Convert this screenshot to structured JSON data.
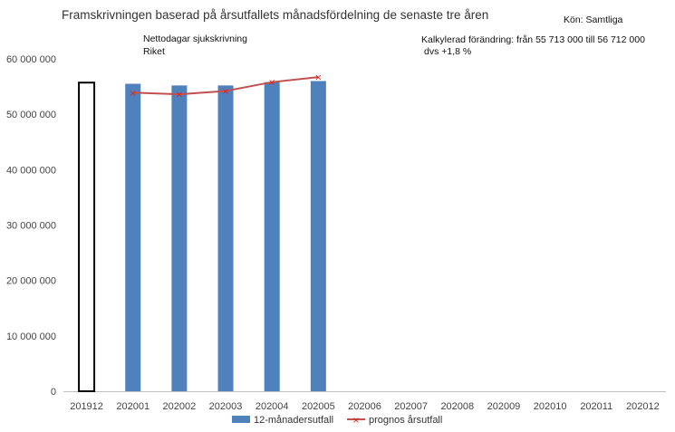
{
  "header": {
    "title": "Framskrivningen baserad på årsutfallets månadsfördelning de senaste tre åren",
    "gender": "Kön: Samtliga",
    "subtitle_line1": "Nettodagar sjukskrivning",
    "subtitle_line2": "Riket",
    "calc_line1": "Kalkylerad förändring: från 55 713 000 till 56 712 000",
    "calc_line2": "dvs +1,8 %"
  },
  "chart_data": {
    "type": "bar",
    "title": "Framskrivningen baserad på årsutfallets månadsfördelning de senaste tre åren",
    "categories": [
      "201912",
      "202001",
      "202002",
      "202003",
      "202004",
      "202005",
      "202006",
      "202007",
      "202008",
      "202009",
      "202010",
      "202011",
      "202012"
    ],
    "ylim": [
      0,
      60000000
    ],
    "yticks": [
      0,
      10000000,
      20000000,
      30000000,
      40000000,
      50000000,
      60000000
    ],
    "ytick_labels": [
      "0",
      "10 000 000",
      "20 000 000",
      "30 000 000",
      "40 000 000",
      "50 000 000",
      "60 000 000"
    ],
    "grid": false,
    "legend_position": "bottom",
    "series": [
      {
        "name": "12-månadersutfall",
        "kind": "bar",
        "color": "#4f81bd",
        "values": [
          55713000,
          55500000,
          55200000,
          55200000,
          55800000,
          56000000,
          null,
          null,
          null,
          null,
          null,
          null,
          null
        ],
        "highlight_first": true,
        "highlight_style": "outline-black"
      },
      {
        "name": "prognos årsutfall",
        "kind": "line",
        "color": "#c0504d",
        "marker_color": "#e0201a",
        "values": [
          null,
          53900000,
          53600000,
          54200000,
          55800000,
          56712000,
          null,
          null,
          null,
          null,
          null,
          null,
          null
        ]
      }
    ]
  }
}
